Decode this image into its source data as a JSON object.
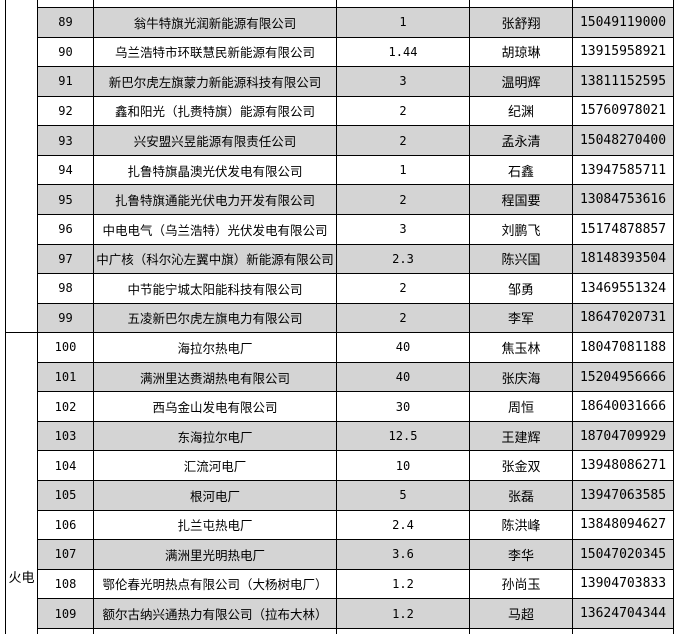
{
  "colors": {
    "row_shade": "#d4d4d4",
    "border": "#000000",
    "page_background": "#ffffff"
  },
  "table": {
    "groups": [
      {
        "label": "",
        "rows": "89-99"
      },
      {
        "label": "火电",
        "rows": "100-109"
      }
    ],
    "rows": [
      {
        "no": "89",
        "company": "翁牛特旗光润新能源有限公司",
        "capacity": "1",
        "contact": "张舒翔",
        "phone": "15049119000",
        "shaded": true
      },
      {
        "no": "90",
        "company": "乌兰浩特市环联慧民新能源有限公司",
        "capacity": "1.44",
        "contact": "胡琼琳",
        "phone": "13915958921",
        "shaded": false
      },
      {
        "no": "91",
        "company": "新巴尔虎左旗蒙力新能源科技有限公司",
        "capacity": "3",
        "contact": "温明辉",
        "phone": "13811152595",
        "shaded": true
      },
      {
        "no": "92",
        "company": "鑫和阳光（扎赉特旗）能源有限公司",
        "capacity": "2",
        "contact": "纪渊",
        "phone": "15760978021",
        "shaded": false
      },
      {
        "no": "93",
        "company": "兴安盟兴昱能源有限责任公司",
        "capacity": "2",
        "contact": "孟永清",
        "phone": "15048270400",
        "shaded": true
      },
      {
        "no": "94",
        "company": "扎鲁特旗晶澳光伏发电有限公司",
        "capacity": "1",
        "contact": "石鑫",
        "phone": "13947585711",
        "shaded": false
      },
      {
        "no": "95",
        "company": "扎鲁特旗通能光伏电力开发有限公司",
        "capacity": "2",
        "contact": "程国要",
        "phone": "13084753616",
        "shaded": true
      },
      {
        "no": "96",
        "company": "中电电气（乌兰浩特）光伏发电有限公司",
        "capacity": "3",
        "contact": "刘鹏飞",
        "phone": "15174878857",
        "shaded": false
      },
      {
        "no": "97",
        "company": "中广核（科尔沁左翼中旗）新能源有限公司",
        "capacity": "2.3",
        "contact": "陈兴国",
        "phone": "18148393504",
        "shaded": true
      },
      {
        "no": "98",
        "company": "中节能宁城太阳能科技有限公司",
        "capacity": "2",
        "contact": "邹勇",
        "phone": "13469551324",
        "shaded": false
      },
      {
        "no": "99",
        "company": "五凌新巴尔虎左旗电力有限公司",
        "capacity": "2",
        "contact": "李军",
        "phone": "18647020731",
        "shaded": true
      },
      {
        "no": "100",
        "company": "海拉尔热电厂",
        "capacity": "40",
        "contact": "焦玉林",
        "phone": "18047081188",
        "shaded": false
      },
      {
        "no": "101",
        "company": "满洲里达赉湖热电有限公司",
        "capacity": "40",
        "contact": "张庆海",
        "phone": "15204956666",
        "shaded": true
      },
      {
        "no": "102",
        "company": "西乌金山发电有限公司",
        "capacity": "30",
        "contact": "周恒",
        "phone": "18640031666",
        "shaded": false
      },
      {
        "no": "103",
        "company": "东海拉尔电厂",
        "capacity": "12.5",
        "contact": "王建辉",
        "phone": "18704709929",
        "shaded": true
      },
      {
        "no": "104",
        "company": "汇流河电厂",
        "capacity": "10",
        "contact": "张金双",
        "phone": "13948086271",
        "shaded": false
      },
      {
        "no": "105",
        "company": "根河电厂",
        "capacity": "5",
        "contact": "张磊",
        "phone": "13947063585",
        "shaded": true
      },
      {
        "no": "106",
        "company": "扎兰屯热电厂",
        "capacity": "2.4",
        "contact": "陈洪峰",
        "phone": "13848094627",
        "shaded": false
      },
      {
        "no": "107",
        "company": "满洲里光明热电厂",
        "capacity": "3.6",
        "contact": "李华",
        "phone": "15047020345",
        "shaded": true
      },
      {
        "no": "108",
        "company": "鄂伦春光明热点有限公司（大杨树电厂）",
        "capacity": "1.2",
        "contact": "孙尚玉",
        "phone": "13904703833",
        "shaded": false
      },
      {
        "no": "109",
        "company": "额尔古纳兴通热力有限公司（拉布大林）",
        "capacity": "1.2",
        "contact": "马超",
        "phone": "13624704344",
        "shaded": true
      }
    ]
  }
}
